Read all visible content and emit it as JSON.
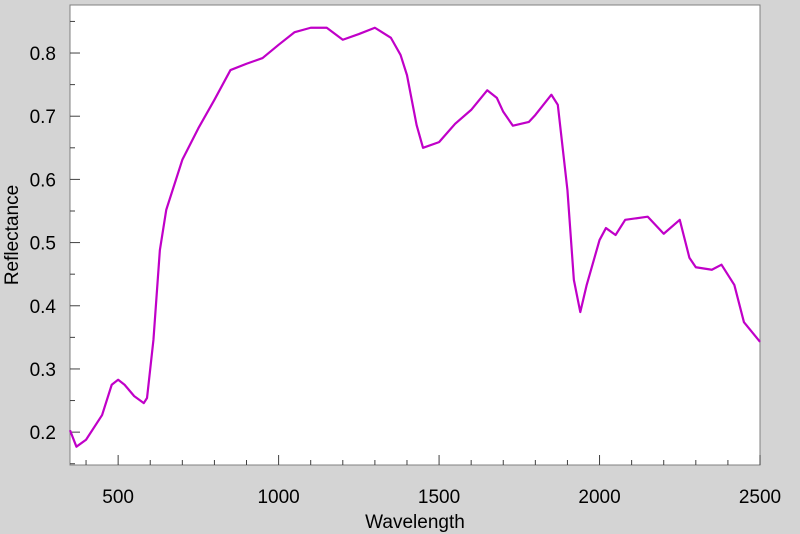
{
  "chart_data": {
    "type": "line",
    "x_label": "Wavelength",
    "y_label": "Reflectance",
    "x": [
      350,
      370,
      400,
      450,
      480,
      500,
      520,
      550,
      580,
      590,
      610,
      630,
      650,
      700,
      750,
      800,
      850,
      900,
      950,
      1000,
      1050,
      1100,
      1150,
      1200,
      1250,
      1300,
      1350,
      1380,
      1400,
      1430,
      1450,
      1500,
      1550,
      1600,
      1650,
      1680,
      1700,
      1730,
      1780,
      1800,
      1850,
      1870,
      1900,
      1920,
      1940,
      1960,
      2000,
      2020,
      2050,
      2080,
      2150,
      2200,
      2250,
      2280,
      2300,
      2350,
      2380,
      2420,
      2450,
      2500
    ],
    "series": [
      {
        "color": "#c000c8",
        "values": [
          0.203,
          0.177,
          0.188,
          0.227,
          0.275,
          0.283,
          0.275,
          0.257,
          0.246,
          0.254,
          0.346,
          0.488,
          0.552,
          0.631,
          0.681,
          0.726,
          0.773,
          0.783,
          0.792,
          0.813,
          0.833,
          0.84,
          0.84,
          0.821,
          0.83,
          0.84,
          0.824,
          0.797,
          0.765,
          0.686,
          0.65,
          0.659,
          0.688,
          0.71,
          0.741,
          0.729,
          0.707,
          0.685,
          0.691,
          0.702,
          0.734,
          0.718,
          0.583,
          0.441,
          0.39,
          0.433,
          0.504,
          0.523,
          0.512,
          0.536,
          0.541,
          0.514,
          0.536,
          0.476,
          0.461,
          0.457,
          0.465,
          0.433,
          0.374,
          0.343
        ]
      }
    ],
    "xlim": [
      350,
      2500
    ],
    "ylim": [
      0.148,
      0.876
    ],
    "xticks": [
      500,
      1000,
      1500,
      2000,
      2500
    ],
    "yticks": [
      0.2,
      0.3,
      0.4,
      0.5,
      0.6,
      0.7,
      0.8
    ],
    "xminorticks": [
      400,
      600,
      700,
      800,
      900,
      1100,
      1200,
      1300,
      1400,
      1600,
      1700,
      1800,
      1900,
      2100,
      2200,
      2300,
      2400
    ],
    "yminorticks": [
      0.15,
      0.25,
      0.35,
      0.45,
      0.55,
      0.65,
      0.75,
      0.85
    ]
  }
}
